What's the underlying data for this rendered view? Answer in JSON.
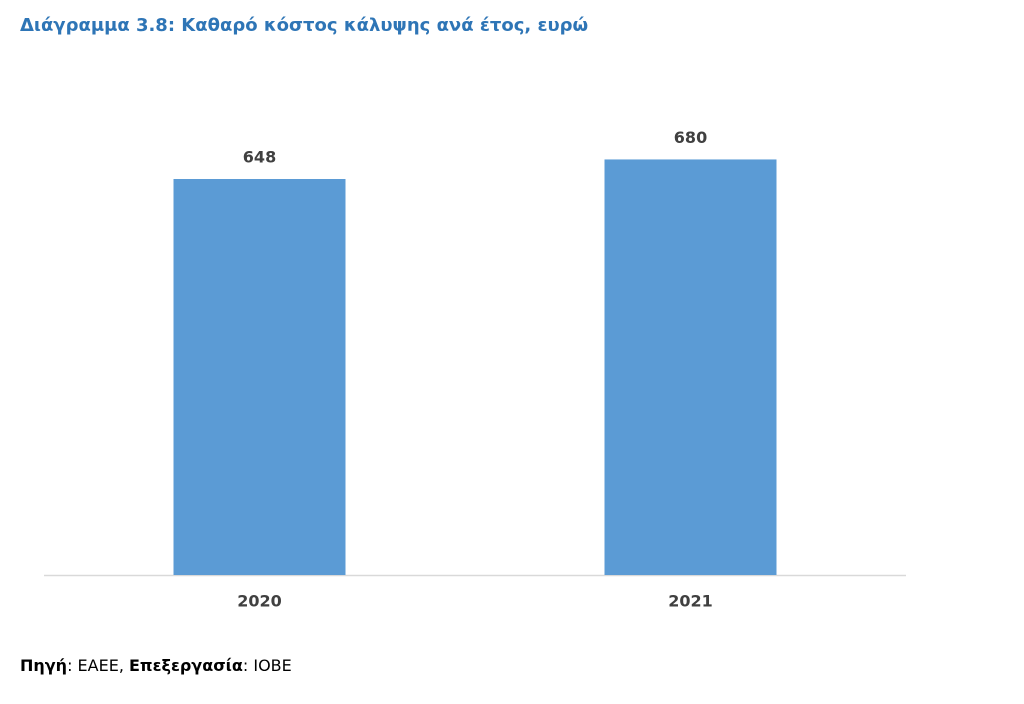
{
  "chart_data": {
    "type": "bar",
    "title": "Διάγραμμα 3.8: Καθαρό κόστος κάλυψης ανά έτος, ευρώ",
    "categories": [
      "2020",
      "2021"
    ],
    "values": [
      648,
      680
    ],
    "color": "#5b9bd5",
    "source": [
      "Πηγή",
      ": ΕΑΕΕ, ",
      "Επεξεργασία",
      ": ΙΟΒΕ"
    ]
  }
}
